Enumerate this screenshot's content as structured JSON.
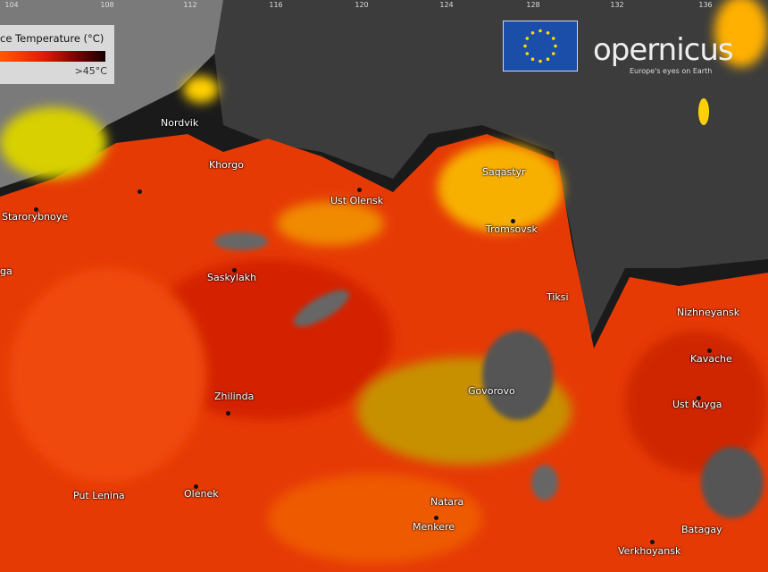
{
  "legend": {
    "title": "ce Temperature (°C)",
    "max_label": ">45°C",
    "gradient_colors": [
      "#ff5a00",
      "#e02000",
      "#700000",
      "#150000"
    ]
  },
  "longitude_ticks": [
    "104",
    "108",
    "112",
    "116",
    "120",
    "124",
    "128",
    "132",
    "136"
  ],
  "logos": {
    "copernicus_word": "opernicus",
    "copernicus_tagline": "Europe's eyes on Earth",
    "eu_flag_color": "#1b4ea8"
  },
  "places": [
    {
      "name": "Nordvik"
    },
    {
      "name": "Khorgo"
    },
    {
      "name": "Starorybnoye"
    },
    {
      "name": "Ust Olensk"
    },
    {
      "name": "Saskylakh"
    },
    {
      "name": "Saqastyr"
    },
    {
      "name": "Tromsovsk"
    },
    {
      "name": "Tiksi"
    },
    {
      "name": "Nizhneyansk"
    },
    {
      "name": "Kavache"
    },
    {
      "name": "Ust Kuyga"
    },
    {
      "name": "Govorovo"
    },
    {
      "name": "Zhilinda"
    },
    {
      "name": "Put Lenina"
    },
    {
      "name": "Olenek"
    },
    {
      "name": "Natara"
    },
    {
      "name": "Menkere"
    },
    {
      "name": "Batagay"
    },
    {
      "name": "Verkhoyansk"
    },
    {
      "name": "ga"
    }
  ]
}
